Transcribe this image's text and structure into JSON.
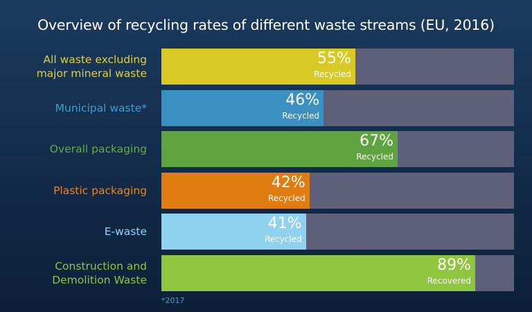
{
  "title": "Overview of  recycling rates of different waste streams (EU, 2016)",
  "footnote": "*2017",
  "colors": {
    "background": "#16304f",
    "remainder_bar": "#5e6079",
    "value_text": "#ffffff"
  },
  "chart_data": {
    "type": "bar",
    "orientation": "horizontal",
    "title": "Overview of  recycling rates of different waste streams (EU, 2016)",
    "xlim": [
      0,
      100
    ],
    "unit": "%",
    "categories": [
      "All waste excluding\nmajor mineral waste",
      "Municipal waste*",
      "Overall packaging",
      "Plastic packaging",
      "E-waste",
      "Construction and\nDemolition Waste"
    ],
    "values": [
      55,
      46,
      67,
      42,
      41,
      89
    ],
    "value_labels": [
      "55%",
      "46%",
      "67%",
      "42%",
      "41%",
      "89%"
    ],
    "sublabels": [
      "Recycled",
      "Recycled",
      "Recycled",
      "Recycled",
      "Recycled",
      "Recovered"
    ],
    "bar_colors": [
      "#d8c923",
      "#3a90c0",
      "#5da43f",
      "#e17c10",
      "#8fd2f0",
      "#8ec63d"
    ],
    "label_colors": [
      "#e0d032",
      "#3f9ec9",
      "#64ad45",
      "#ec8418",
      "#95d5f2",
      "#8ec63d"
    ]
  }
}
